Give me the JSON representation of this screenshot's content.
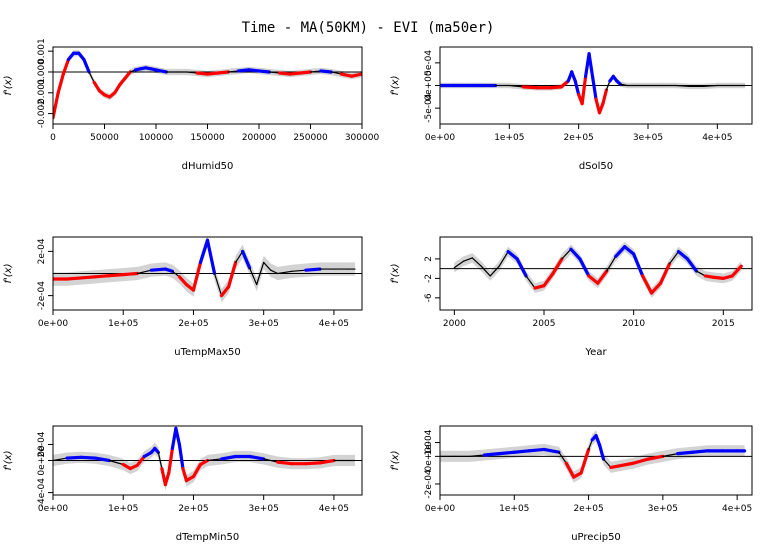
{
  "title": "Time - MA(50KM) - EVI (ma50er)",
  "ylabel": "f'(x)",
  "colors": {
    "band": "#d3d3d3",
    "neutral": "#000000",
    "positive": "#0000ff",
    "negative": "#ff0000",
    "zero_line": "#000000"
  },
  "chart_data": [
    {
      "type": "line",
      "xlabel": "dHumid50",
      "xlim": [
        0,
        300000
      ],
      "ylim": [
        -0.0025,
        0.0012
      ],
      "xticks": [
        0,
        50000,
        100000,
        150000,
        200000,
        250000,
        300000
      ],
      "xtick_labels": [
        "0",
        "50000",
        "100000",
        "150000",
        "200000",
        "250000",
        "300000"
      ],
      "yticks": [
        -0.002,
        -0.001,
        0.0,
        0.001
      ],
      "ytick_labels": [
        "-0.002",
        "-0.001",
        "0.000",
        "0.001"
      ],
      "series": [
        {
          "x": [
            0,
            5000,
            10000,
            15000,
            20000,
            25000,
            30000,
            35000,
            40000,
            45000,
            50000,
            55000,
            60000,
            65000,
            70000,
            75000,
            80000,
            85000,
            90000,
            95000,
            100000,
            110000,
            120000,
            130000,
            140000,
            150000,
            160000,
            170000,
            180000,
            190000,
            200000,
            210000,
            220000,
            230000,
            240000,
            250000,
            260000,
            270000,
            280000,
            290000,
            300000
          ],
          "y": [
            -0.0022,
            -0.001,
            -0.0001,
            0.0006,
            0.0009,
            0.0009,
            0.0006,
            0.0,
            -0.0005,
            -0.0009,
            -0.0011,
            -0.0012,
            -0.001,
            -0.0006,
            -0.0003,
            0.0,
            0.0001,
            0.00015,
            0.0002,
            0.00015,
            0.0001,
            0.0,
            0.0,
            0.0,
            -5e-05,
            -0.0001,
            -5e-05,
            0.0,
            5e-05,
            0.0001,
            5e-05,
            0.0,
            -5e-05,
            -0.0001,
            -5e-05,
            0.0,
            5e-05,
            0.0,
            -0.0001,
            -0.0002,
            -0.0001
          ],
          "band": 0.00015,
          "colors": [
            "r",
            "r",
            "r",
            "b",
            "b",
            "b",
            "b",
            "k",
            "r",
            "r",
            "r",
            "r",
            "r",
            "r",
            "r",
            "k",
            "b",
            "b",
            "b",
            "b",
            "b",
            "k",
            "k",
            "k",
            "r",
            "r",
            "r",
            "k",
            "b",
            "b",
            "b",
            "k",
            "r",
            "r",
            "r",
            "k",
            "b",
            "k",
            "r",
            "r",
            "r"
          ]
        }
      ]
    },
    {
      "type": "line",
      "xlabel": "dSol50",
      "xlim": [
        0,
        450000
      ],
      "ylim": [
        -0.00085,
        0.00085
      ],
      "xticks": [
        0,
        100000,
        200000,
        300000,
        400000
      ],
      "xtick_labels": [
        "0e+00",
        "1e+05",
        "2e+05",
        "3e+05",
        "4e+05"
      ],
      "yticks": [
        -0.0005,
        0.0,
        0.0005
      ],
      "ytick_labels": [
        "-5e-04",
        "0e+00",
        "5e-04"
      ],
      "series": [
        {
          "x": [
            0,
            20000,
            40000,
            60000,
            80000,
            100000,
            120000,
            140000,
            160000,
            175000,
            185000,
            190000,
            195000,
            200000,
            205000,
            210000,
            215000,
            220000,
            225000,
            230000,
            235000,
            240000,
            245000,
            250000,
            255000,
            260000,
            270000,
            280000,
            300000,
            320000,
            340000,
            360000,
            380000,
            400000,
            420000,
            440000
          ],
          "y": [
            0.0,
            0.0,
            0.0,
            0.0,
            0.0,
            0.0,
            -3e-05,
            -5e-05,
            -5e-05,
            -3e-05,
            0.0001,
            0.0003,
            0.0001,
            -0.0002,
            -0.0004,
            0.0002,
            0.0007,
            0.0002,
            -0.0003,
            -0.0006,
            -0.0004,
            -0.0001,
            0.0001,
            0.0002,
            0.0001,
            3e-05,
            0.0,
            0.0,
            0.0,
            0.0,
            0.0,
            -2e-05,
            -2e-05,
            0.0,
            0.0,
            0.0
          ],
          "band": 6e-05,
          "colors": [
            "b",
            "b",
            "b",
            "b",
            "k",
            "k",
            "r",
            "r",
            "r",
            "r",
            "b",
            "b",
            "b",
            "r",
            "r",
            "b",
            "b",
            "b",
            "r",
            "r",
            "r",
            "k",
            "b",
            "b",
            "b",
            "k",
            "k",
            "k",
            "k",
            "k",
            "k",
            "k",
            "k",
            "k",
            "k",
            "k"
          ]
        }
      ]
    },
    {
      "type": "line",
      "xlabel": "uTempMax50",
      "xlim": [
        0,
        440000
      ],
      "ylim": [
        -0.00033,
        0.00033
      ],
      "xticks": [
        0,
        100000,
        200000,
        300000,
        400000
      ],
      "xtick_labels": [
        "0e+00",
        "1e+05",
        "2e+05",
        "3e+05",
        "4e+05"
      ],
      "yticks": [
        -0.0002,
        0.0002
      ],
      "ytick_labels": [
        "-2e-04",
        "2e-04"
      ],
      "series": [
        {
          "x": [
            0,
            20000,
            40000,
            60000,
            80000,
            100000,
            120000,
            140000,
            160000,
            170000,
            180000,
            190000,
            200000,
            210000,
            220000,
            230000,
            240000,
            250000,
            260000,
            270000,
            280000,
            290000,
            300000,
            310000,
            320000,
            340000,
            360000,
            380000,
            400000,
            420000,
            430000
          ],
          "y": [
            -5e-05,
            -5e-05,
            -4e-05,
            -3e-05,
            -2e-05,
            -1e-05,
            0.0,
            3e-05,
            4e-05,
            2e-05,
            -3e-05,
            -0.0001,
            -0.00015,
            0.0001,
            0.0003,
            0.0,
            -0.0002,
            -0.00012,
            0.0001,
            0.0002,
            5e-05,
            -0.0001,
            0.0001,
            3e-05,
            0.0,
            2e-05,
            3e-05,
            4e-05,
            4e-05,
            4e-05,
            4e-05
          ],
          "band": 6e-05,
          "colors": [
            "r",
            "r",
            "r",
            "r",
            "r",
            "r",
            "k",
            "b",
            "b",
            "k",
            "r",
            "r",
            "r",
            "b",
            "b",
            "k",
            "r",
            "r",
            "k",
            "b",
            "k",
            "k",
            "k",
            "k",
            "k",
            "k",
            "b",
            "k",
            "k",
            "k",
            "k"
          ]
        }
      ]
    },
    {
      "type": "line",
      "xlabel": "Year",
      "xlim": [
        1999.2,
        2016.6
      ],
      "ylim": [
        -8.5,
        6.5
      ],
      "xticks": [
        2000,
        2005,
        2010,
        2015
      ],
      "xtick_labels": [
        "2000",
        "2005",
        "2010",
        "2015"
      ],
      "yticks": [
        -6,
        -2,
        2
      ],
      "ytick_labels": [
        "-6",
        "-2",
        "2"
      ],
      "series": [
        {
          "x": [
            2000,
            2000.5,
            2001,
            2001.5,
            2002,
            2002.5,
            2003,
            2003.5,
            2004,
            2004.5,
            2005,
            2005.5,
            2006,
            2006.5,
            2007,
            2007.5,
            2008,
            2008.5,
            2009,
            2009.5,
            2010,
            2010.5,
            2011,
            2011.5,
            2012,
            2012.5,
            2013,
            2013.5,
            2014,
            2014.5,
            2015,
            2015.5,
            2016
          ],
          "y": [
            0.2,
            1.5,
            2.2,
            0.5,
            -1.5,
            0.5,
            3.5,
            2.0,
            -1.5,
            -4.0,
            -3.5,
            -1.0,
            2.0,
            4.0,
            2.0,
            -1.5,
            -3.0,
            -0.5,
            2.5,
            4.5,
            3.0,
            -1.5,
            -5.0,
            -3.0,
            1.0,
            3.5,
            2.0,
            -0.5,
            -1.5,
            -1.8,
            -2.0,
            -1.5,
            0.5
          ],
          "band": 1.0,
          "colors": [
            "k",
            "k",
            "k",
            "k",
            "k",
            "k",
            "b",
            "b",
            "k",
            "r",
            "r",
            "r",
            "k",
            "b",
            "b",
            "r",
            "r",
            "k",
            "b",
            "b",
            "b",
            "r",
            "r",
            "r",
            "k",
            "b",
            "b",
            "k",
            "r",
            "r",
            "r",
            "r",
            "k"
          ]
        }
      ]
    },
    {
      "type": "line",
      "xlabel": "dTempMin50",
      "xlim": [
        0,
        440000
      ],
      "ylim": [
        -0.00043,
        0.00043
      ],
      "xticks": [
        0,
        100000,
        200000,
        300000,
        400000
      ],
      "xtick_labels": [
        "0e+00",
        "1e+05",
        "2e+05",
        "3e+05",
        "4e+05"
      ],
      "yticks": [
        -0.0004,
        0.0,
        0.0002
      ],
      "ytick_labels": [
        "-4e-04",
        "0e+00",
        "2e-04"
      ],
      "series": [
        {
          "x": [
            0,
            20000,
            40000,
            60000,
            80000,
            100000,
            110000,
            120000,
            130000,
            140000,
            145000,
            150000,
            155000,
            160000,
            165000,
            170000,
            175000,
            180000,
            185000,
            190000,
            200000,
            210000,
            220000,
            240000,
            260000,
            280000,
            300000,
            320000,
            340000,
            360000,
            380000,
            400000,
            420000,
            430000
          ],
          "y": [
            0.0,
            3e-05,
            4e-05,
            3e-05,
            0.0,
            -5e-05,
            -0.0001,
            -6e-05,
            5e-05,
            0.0001,
            0.00015,
            0.0001,
            -0.0001,
            -0.0003,
            -0.00015,
            0.00015,
            0.0004,
            0.0002,
            -0.0001,
            -0.00025,
            -0.0002,
            -5e-05,
            0.0,
            2e-05,
            5e-05,
            5e-05,
            2e-05,
            -2e-05,
            -4e-05,
            -4e-05,
            -3e-05,
            0.0,
            0.0,
            0.0
          ],
          "band": 7e-05,
          "colors": [
            "k",
            "b",
            "b",
            "b",
            "k",
            "r",
            "r",
            "r",
            "b",
            "b",
            "b",
            "k",
            "r",
            "r",
            "r",
            "b",
            "b",
            "b",
            "r",
            "r",
            "r",
            "r",
            "k",
            "b",
            "b",
            "b",
            "k",
            "r",
            "r",
            "r",
            "r",
            "k",
            "k",
            "k"
          ]
        }
      ]
    },
    {
      "type": "line",
      "xlabel": "uPrecip50",
      "xlim": [
        0,
        420000
      ],
      "ylim": [
        -0.00028,
        0.00022
      ],
      "xticks": [
        0,
        100000,
        200000,
        300000,
        400000
      ],
      "xtick_labels": [
        "0e+00",
        "1e+05",
        "2e+05",
        "3e+05",
        "4e+05"
      ],
      "yticks": [
        -0.0002,
        0.0,
        0.0001
      ],
      "ytick_labels": [
        "-2e-04",
        "0e+00",
        "1e-04"
      ],
      "series": [
        {
          "x": [
            0,
            20000,
            40000,
            60000,
            80000,
            100000,
            120000,
            140000,
            160000,
            170000,
            180000,
            190000,
            200000,
            205000,
            210000,
            215000,
            220000,
            230000,
            240000,
            260000,
            280000,
            300000,
            320000,
            340000,
            360000,
            380000,
            400000,
            410000
          ],
          "y": [
            0.0,
            0.0,
            0.0,
            1e-05,
            2e-05,
            3e-05,
            4e-05,
            5e-05,
            3e-05,
            -5e-05,
            -0.00015,
            -0.00012,
            5e-05,
            0.00012,
            0.00015,
            8e-05,
            -2e-05,
            -8e-05,
            -7e-05,
            -5e-05,
            -2e-05,
            0.0,
            2e-05,
            3e-05,
            4e-05,
            4e-05,
            4e-05,
            4e-05
          ],
          "band": 4e-05,
          "colors": [
            "k",
            "k",
            "k",
            "b",
            "b",
            "b",
            "b",
            "b",
            "k",
            "r",
            "r",
            "r",
            "k",
            "b",
            "b",
            "b",
            "k",
            "r",
            "r",
            "r",
            "r",
            "k",
            "b",
            "b",
            "b",
            "b",
            "b",
            "b"
          ]
        }
      ]
    }
  ]
}
